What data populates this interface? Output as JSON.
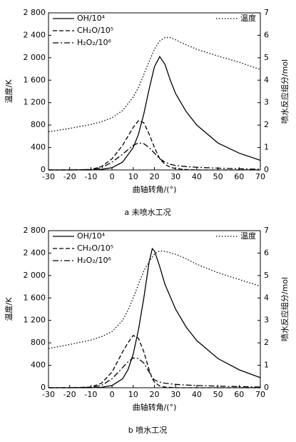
{
  "chart_data": [
    {
      "type": "line",
      "caption": "a 未喷水工况",
      "x_label": "曲轴转角/(°)",
      "y_label": "温度/K",
      "y2_label": "喷水反应组分/mol",
      "x": [
        -30,
        -20,
        -10,
        -5,
        0,
        5,
        10,
        12.5,
        15,
        17.5,
        20,
        22.5,
        25,
        27.5,
        30,
        35,
        40,
        50,
        60,
        70
      ],
      "series": [
        {
          "name": "温度",
          "color": "#000000",
          "dash": "dotted",
          "values": [
            680,
            740,
            810,
            860,
            930,
            1060,
            1300,
            1470,
            1700,
            1930,
            2150,
            2300,
            2360,
            2360,
            2320,
            2230,
            2150,
            2030,
            1920,
            1790
          ]
        },
        {
          "name": "OH/10⁴",
          "color": "#000000",
          "dash": "solid",
          "axis": "y2",
          "values": [
            0,
            0,
            0,
            0.03,
            0.1,
            0.35,
            1.0,
            1.6,
            2.5,
            3.6,
            4.6,
            5.05,
            4.7,
            4.0,
            3.4,
            2.6,
            2.0,
            1.2,
            0.75,
            0.43
          ]
        },
        {
          "name": "CH₂O/10⁵",
          "color": "#000000",
          "dash": "dashed",
          "axis": "y2",
          "values": [
            0,
            0,
            0.02,
            0.15,
            0.5,
            1.1,
            1.9,
            2.2,
            2.1,
            1.6,
            1.0,
            0.5,
            0.25,
            0.12,
            0.06,
            0.02,
            0,
            0,
            0,
            0
          ]
        },
        {
          "name": "H₂O₂/10⁶",
          "color": "#000000",
          "dash": "dashdot",
          "axis": "y2",
          "values": [
            0,
            0,
            0.02,
            0.1,
            0.35,
            0.7,
            1.1,
            1.2,
            1.17,
            1.0,
            0.75,
            0.5,
            0.35,
            0.25,
            0.2,
            0.15,
            0.12,
            0.08,
            0.05,
            0.03
          ]
        }
      ],
      "xlim": [
        -30,
        70
      ],
      "xticks": [
        -30,
        -20,
        -10,
        0,
        10,
        20,
        30,
        40,
        50,
        60,
        70
      ],
      "ylim": [
        0,
        2800
      ],
      "yticks": [
        0,
        400,
        800,
        {
          "value": 1200,
          "label": "1 200"
        },
        {
          "value": 1600,
          "label": "1 600"
        },
        {
          "value": 2000,
          "label": "2 000"
        },
        {
          "value": 2400,
          "label": "2 400"
        },
        {
          "value": 2800,
          "label": "2 800"
        }
      ],
      "y2lim": [
        0,
        7
      ],
      "y2ticks": [
        0,
        1,
        2,
        3,
        4,
        5,
        6,
        7
      ]
    },
    {
      "type": "line",
      "caption": "b 喷水工况",
      "x_label": "曲轴转角/(°)",
      "y_label": "温度/K",
      "y2_label": "喷水反应组分/mol",
      "x": [
        -30,
        -20,
        -10,
        -5,
        0,
        5,
        7.5,
        10,
        12.5,
        15,
        17.5,
        19,
        20,
        22.5,
        25,
        30,
        35,
        40,
        50,
        60,
        70
      ],
      "series": [
        {
          "name": "温度",
          "color": "#000000",
          "dash": "dotted",
          "values": [
            700,
            770,
            850,
            910,
            1000,
            1200,
            1380,
            1600,
            1850,
            2080,
            2250,
            2330,
            2380,
            2440,
            2430,
            2380,
            2300,
            2200,
            2050,
            1930,
            1810
          ]
        },
        {
          "name": "OH/10⁴",
          "color": "#000000",
          "dash": "solid",
          "axis": "y2",
          "values": [
            0,
            0,
            0,
            0.02,
            0.1,
            0.4,
            0.8,
            1.5,
            2.6,
            4.0,
            5.6,
            6.2,
            6.1,
            5.4,
            4.6,
            3.5,
            2.7,
            2.1,
            1.3,
            0.8,
            0.45
          ]
        },
        {
          "name": "CH₂O/10⁵",
          "color": "#000000",
          "dash": "dashed",
          "axis": "y2",
          "values": [
            0,
            0,
            0.03,
            0.2,
            0.7,
            1.6,
            2.0,
            2.33,
            2.2,
            1.6,
            0.8,
            0.4,
            0.25,
            0.08,
            0.03,
            0,
            0,
            0,
            0,
            0,
            0
          ]
        },
        {
          "name": "H₂O₂/10⁶",
          "color": "#000000",
          "dash": "dashdot",
          "axis": "y2",
          "values": [
            0,
            0,
            0.02,
            0.1,
            0.4,
            0.9,
            1.15,
            1.33,
            1.3,
            1.1,
            0.7,
            0.45,
            0.35,
            0.25,
            0.2,
            0.15,
            0.12,
            0.1,
            0.07,
            0.05,
            0.03
          ]
        }
      ],
      "xlim": [
        -30,
        70
      ],
      "xticks": [
        -30,
        -20,
        -10,
        0,
        10,
        20,
        30,
        40,
        50,
        60,
        70
      ],
      "ylim": [
        0,
        2800
      ],
      "yticks": [
        0,
        400,
        800,
        {
          "value": 1200,
          "label": "1 200"
        },
        {
          "value": 1600,
          "label": "1 600"
        },
        {
          "value": 2000,
          "label": "2 000"
        },
        {
          "value": 2400,
          "label": "2 400"
        },
        {
          "value": 2800,
          "label": "2 800"
        }
      ],
      "y2lim": [
        0,
        7
      ],
      "y2ticks": [
        0,
        1,
        2,
        3,
        4,
        5,
        6,
        7
      ]
    }
  ]
}
